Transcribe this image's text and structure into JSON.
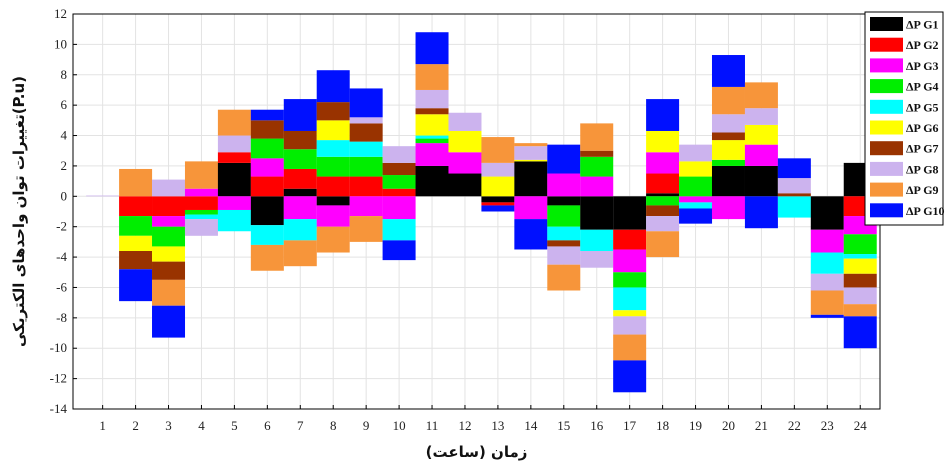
{
  "chart_data": {
    "type": "bar",
    "stacked": true,
    "xlabel": "زمان (ساعت)",
    "ylabel": "تغییرات توان واحدهای الکتریکی(P.u)",
    "categories": [
      "1",
      "2",
      "3",
      "4",
      "5",
      "6",
      "7",
      "8",
      "9",
      "10",
      "11",
      "12",
      "13",
      "14",
      "15",
      "16",
      "17",
      "18",
      "19",
      "20",
      "21",
      "22",
      "23",
      "24"
    ],
    "ylim": [
      -14,
      12
    ],
    "yticks": [
      "12",
      "10",
      "8",
      "6",
      "4",
      "2",
      "0",
      "-2",
      "-4",
      "-6",
      "-8",
      "-10",
      "-12",
      "-14"
    ],
    "grid": true,
    "legend_position": "top-right",
    "series": [
      {
        "name": "ΔP G1",
        "color": "#000000",
        "values": [
          0,
          0,
          0,
          0,
          2.2,
          -1.9,
          0.5,
          -0.6,
          0,
          0,
          2.0,
          1.5,
          -0.4,
          2.3,
          -0.6,
          -2.2,
          -2.2,
          0.2,
          0,
          2.0,
          2.0,
          0,
          -2.2,
          2.2
        ]
      },
      {
        "name": "ΔP G2",
        "color": "#ff0000",
        "values": [
          0,
          -1.3,
          -1.3,
          -0.9,
          0.7,
          1.3,
          1.3,
          1.3,
          1.3,
          0.5,
          0,
          0,
          -0.2,
          0,
          0,
          0,
          -1.3,
          1.3,
          0,
          0,
          0,
          0,
          0,
          -1.3
        ]
      },
      {
        "name": "ΔP G3",
        "color": "#ff00ff",
        "values": [
          0,
          0,
          -0.7,
          0.5,
          -0.9,
          1.2,
          -1.5,
          -1.4,
          -1.3,
          -1.5,
          1.5,
          1.4,
          0,
          -1.5,
          1.5,
          1.3,
          -1.5,
          1.4,
          -0.4,
          -1.5,
          1.4,
          0,
          -1.5,
          -1.2
        ]
      },
      {
        "name": "ΔP G4",
        "color": "#00ee00",
        "values": [
          0,
          -1.3,
          -1.3,
          -0.3,
          0,
          1.3,
          1.3,
          1.3,
          1.3,
          0.9,
          0.3,
          0,
          0,
          0,
          -1.4,
          1.3,
          -1.0,
          -0.6,
          1.3,
          0.4,
          0,
          0,
          0,
          -1.3
        ]
      },
      {
        "name": "ΔP G5",
        "color": "#00ffff",
        "values": [
          0,
          0,
          0,
          -0.3,
          -1.4,
          -1.3,
          -1.4,
          1.1,
          1.0,
          -1.4,
          0.2,
          0,
          0,
          0,
          -0.9,
          -1.4,
          -1.5,
          0,
          -0.4,
          0,
          0,
          -1.4,
          -1.4,
          -0.3
        ]
      },
      {
        "name": "ΔP G6",
        "color": "#ffff00",
        "values": [
          0,
          -1.0,
          -1.0,
          0,
          0,
          0,
          0,
          1.3,
          0,
          0,
          1.4,
          1.4,
          1.3,
          0.1,
          0,
          0,
          -0.4,
          1.4,
          1.0,
          1.3,
          1.3,
          0,
          0,
          -1.0
        ]
      },
      {
        "name": "ΔP G7",
        "color": "#993300",
        "values": [
          0,
          -1.2,
          -1.2,
          0,
          0,
          1.2,
          1.2,
          1.2,
          1.2,
          0.8,
          0.4,
          0,
          0,
          0,
          -0.4,
          0.4,
          0,
          -0.7,
          0,
          0.5,
          0,
          0.2,
          0,
          -0.9
        ]
      },
      {
        "name": "ΔP G8",
        "color": "#ccb3ee",
        "values": [
          0.05,
          0,
          1.1,
          -1.1,
          1.1,
          0,
          0,
          0,
          0.4,
          1.1,
          1.2,
          1.2,
          0.9,
          0.9,
          -1.2,
          -1.1,
          -1.2,
          -1.0,
          1.1,
          1.2,
          1.1,
          1.0,
          -1.1,
          -1.1
        ]
      },
      {
        "name": "ΔP G9",
        "color": "#f7953a",
        "values": [
          0,
          1.8,
          -1.7,
          1.8,
          1.7,
          -1.7,
          -1.7,
          -1.7,
          -1.7,
          0,
          1.7,
          0,
          1.7,
          0.2,
          -1.7,
          1.8,
          -1.7,
          -1.7,
          0,
          1.8,
          1.7,
          0,
          -1.6,
          -0.8
        ]
      },
      {
        "name": "ΔP G10",
        "color": "#0010ff",
        "values": [
          0,
          -2.1,
          -2.1,
          0,
          0,
          0.7,
          2.1,
          2.1,
          1.9,
          -1.3,
          2.1,
          0,
          -0.4,
          -2.0,
          1.9,
          0,
          -2.1,
          2.1,
          -1.0,
          2.1,
          -2.1,
          1.3,
          -0.2,
          -2.1
        ]
      }
    ]
  }
}
